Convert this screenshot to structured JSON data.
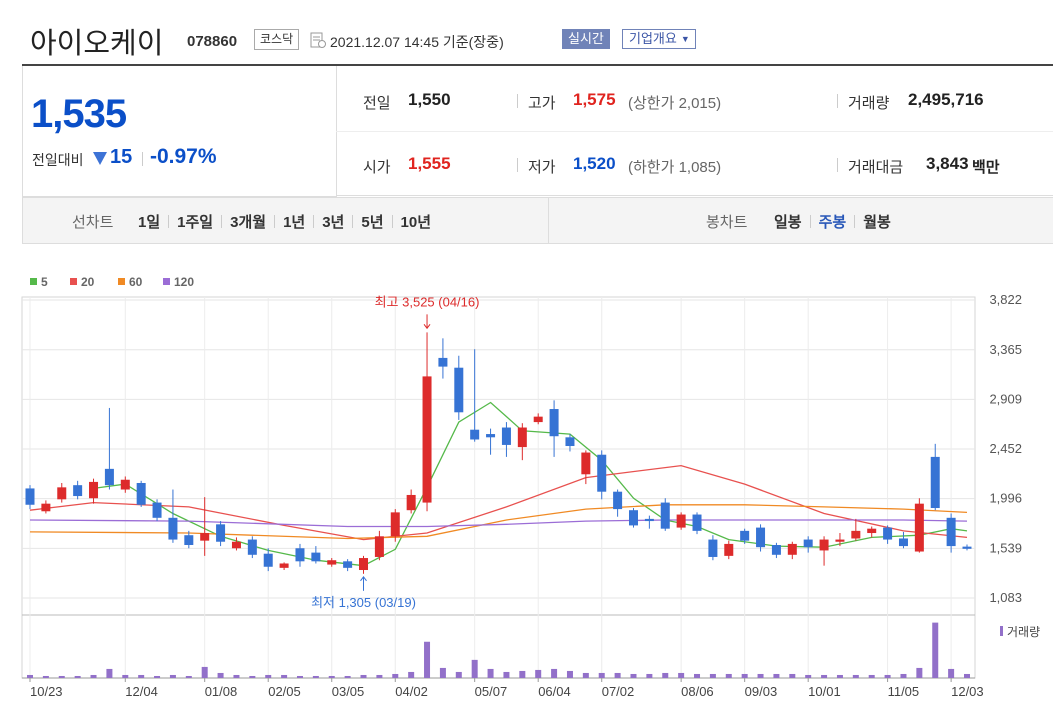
{
  "header": {
    "name": "아이오케이",
    "code": "078860",
    "market": "코스닥",
    "time": "2021.12.07 14:45 기준(장중)",
    "realtime": "실시간",
    "company": "기업개요"
  },
  "quote": {
    "price": "1,535",
    "change_label": "전일대비",
    "change": "15",
    "change_rate": "-0.97%",
    "stats": [
      {
        "label": "전일",
        "value": "1,550"
      },
      {
        "label": "고가",
        "value": "1,575",
        "note": "(상한가 2,015)"
      },
      {
        "label": "거래량",
        "value": "2,495,716"
      },
      {
        "label": "시가",
        "value": "1,555"
      },
      {
        "label": "저가",
        "value": "1,520",
        "note": "(하한가 1,085)"
      },
      {
        "label": "거래대금",
        "value": "3,843",
        "unit": "백만"
      }
    ]
  },
  "tabs": {
    "line_label": "선차트",
    "line": [
      "1일",
      "1주일",
      "3개월",
      "1년",
      "3년",
      "5년",
      "10년"
    ],
    "candle_label": "봉차트",
    "candle": [
      "일봉",
      "주봉",
      "월봉"
    ]
  },
  "chart_data": {
    "type": "candlestick",
    "categories": [
      "10/23",
      null,
      null,
      null,
      null,
      null,
      "12/04",
      null,
      null,
      null,
      null,
      "01/08",
      null,
      null,
      null,
      "02/05",
      null,
      null,
      null,
      "03/05",
      null,
      null,
      null,
      "04/02",
      null,
      null,
      null,
      null,
      "05/07",
      null,
      null,
      null,
      "06/04",
      null,
      null,
      null,
      "07/02",
      null,
      null,
      null,
      null,
      "08/06",
      null,
      null,
      null,
      "09/03",
      null,
      null,
      null,
      "10/01",
      null,
      null,
      null,
      null,
      "11/05",
      null,
      null,
      null,
      "12/03",
      null
    ],
    "open": [
      2090,
      1880,
      1990,
      2120,
      2000,
      2270,
      2080,
      2140,
      1960,
      1820,
      1660,
      1610,
      1760,
      1540,
      1620,
      1490,
      1360,
      1540,
      1500,
      1390,
      1420,
      1340,
      1460,
      1650,
      1890,
      1960,
      3290,
      3200,
      2630,
      2590,
      2650,
      2470,
      2700,
      2820,
      2560,
      2220,
      2400,
      2060,
      1890,
      1810,
      1960,
      1730,
      1850,
      1620,
      1470,
      1700,
      1730,
      1570,
      1480,
      1620,
      1520,
      1600,
      1630,
      1680,
      1730,
      1630,
      1510,
      2380,
      1820,
      1555
    ],
    "high": [
      2120,
      1980,
      2140,
      2160,
      2180,
      2830,
      2200,
      2160,
      1990,
      2080,
      1700,
      2010,
      1790,
      1640,
      1650,
      1540,
      1410,
      1580,
      1560,
      1450,
      1440,
      1470,
      1700,
      1900,
      2080,
      3525,
      3470,
      3310,
      3370,
      2640,
      2700,
      2690,
      2780,
      2900,
      2590,
      2440,
      2440,
      2080,
      1910,
      1840,
      2000,
      1870,
      1870,
      1660,
      1610,
      1720,
      1760,
      1590,
      1600,
      1650,
      1650,
      1680,
      1810,
      1740,
      1750,
      1690,
      2000,
      2500,
      1860,
      1575
    ],
    "low": [
      1900,
      1860,
      1960,
      1990,
      1950,
      2080,
      2050,
      1920,
      1790,
      1590,
      1540,
      1470,
      1560,
      1520,
      1450,
      1330,
      1340,
      1370,
      1400,
      1370,
      1330,
      1305,
      1430,
      1600,
      1860,
      1880,
      3100,
      2720,
      2520,
      2400,
      2380,
      2350,
      2680,
      2380,
      2430,
      2130,
      1990,
      1830,
      1730,
      1720,
      1700,
      1710,
      1670,
      1430,
      1440,
      1580,
      1510,
      1450,
      1440,
      1500,
      1380,
      1560,
      1610,
      1640,
      1580,
      1540,
      1500,
      1890,
      1500,
      1520
    ],
    "close": [
      1940,
      1950,
      2100,
      2020,
      2150,
      2120,
      2170,
      1940,
      1820,
      1620,
      1570,
      1680,
      1600,
      1600,
      1480,
      1370,
      1400,
      1420,
      1420,
      1430,
      1360,
      1450,
      1650,
      1870,
      2030,
      3120,
      3210,
      2790,
      2540,
      2560,
      2490,
      2650,
      2750,
      2570,
      2480,
      2420,
      2060,
      1900,
      1750,
      1790,
      1720,
      1850,
      1700,
      1460,
      1580,
      1610,
      1550,
      1480,
      1580,
      1550,
      1620,
      1620,
      1700,
      1720,
      1620,
      1560,
      1950,
      1910,
      1560,
      1535
    ],
    "up_color": "#dd2b2b",
    "down_color": "#3673d4",
    "ylim": [
      954,
      3850
    ],
    "yticks": [
      {
        "value": 1083,
        "label": "1,083"
      },
      {
        "value": 1539,
        "label": "1,539"
      },
      {
        "value": 1996,
        "label": "1,996"
      },
      {
        "value": 2452,
        "label": "2,452"
      },
      {
        "value": 2909,
        "label": "2,909"
      },
      {
        "value": 3365,
        "label": "3,365"
      },
      {
        "value": 3822,
        "label": "3,822"
      }
    ],
    "grid": true,
    "series": [
      {
        "name": "5",
        "color": "#55b94a",
        "x": [
          4,
          6,
          9,
          12,
          15,
          18,
          21,
          23,
          25,
          27,
          29,
          31,
          34,
          36,
          38,
          40,
          42,
          44,
          47,
          50,
          53,
          56,
          58,
          59
        ],
        "values": [
          2090,
          2130,
          1860,
          1650,
          1520,
          1430,
          1380,
          1530,
          2100,
          2700,
          2880,
          2620,
          2590,
          2350,
          2000,
          1800,
          1740,
          1620,
          1560,
          1550,
          1640,
          1660,
          1720,
          1700
        ]
      },
      {
        "name": "20",
        "color": "#e8514f",
        "x": [
          0,
          4,
          10,
          16,
          21,
          25,
          30,
          35,
          41,
          45,
          50,
          55,
          59
        ],
        "values": [
          1890,
          1960,
          1920,
          1750,
          1620,
          1680,
          1920,
          2190,
          2300,
          2130,
          1860,
          1700,
          1640
        ]
      },
      {
        "name": "60",
        "color": "#f08a24",
        "x": [
          0,
          10,
          20,
          25,
          30,
          35,
          40,
          45,
          50,
          55,
          59
        ],
        "values": [
          1690,
          1680,
          1630,
          1650,
          1800,
          1900,
          1940,
          1940,
          1920,
          1900,
          1870
        ]
      },
      {
        "name": "120",
        "color": "#9b6dd6",
        "x": [
          0,
          10,
          20,
          25,
          30,
          35,
          40,
          45,
          50,
          55,
          59
        ],
        "values": [
          1800,
          1790,
          1740,
          1740,
          1760,
          1790,
          1800,
          1800,
          1800,
          1800,
          1790
        ]
      }
    ],
    "volume": {
      "name": "거래량",
      "color": "#9270c9",
      "ylim": [
        0,
        36000000
      ],
      "values": [
        1875000,
        1250000,
        1250000,
        1250000,
        1875000,
        5625000,
        1875000,
        1875000,
        1250000,
        1875000,
        1250000,
        6875000,
        3125000,
        1875000,
        1250000,
        1875000,
        1875000,
        1250000,
        1250000,
        1250000,
        1250000,
        1875000,
        1875000,
        2500000,
        3750000,
        22500000,
        6250000,
        3750000,
        11250000,
        5625000,
        3750000,
        4375000,
        5000000,
        5625000,
        4375000,
        3125000,
        3125000,
        3125000,
        2500000,
        2500000,
        3125000,
        3125000,
        2500000,
        2500000,
        2500000,
        2500000,
        2500000,
        2500000,
        2500000,
        1875000,
        1875000,
        1875000,
        1875000,
        1875000,
        1875000,
        2500000,
        6250000,
        34375000,
        5625000,
        2495716
      ]
    },
    "annotations": [
      {
        "text": "최고 3,525 (04/16)",
        "x": 25,
        "value": 3525,
        "color": "#dd2b2b"
      },
      {
        "text": "최저 1,305 (03/19)",
        "x": 21,
        "value": 1305,
        "color": "#3673d4"
      }
    ]
  }
}
